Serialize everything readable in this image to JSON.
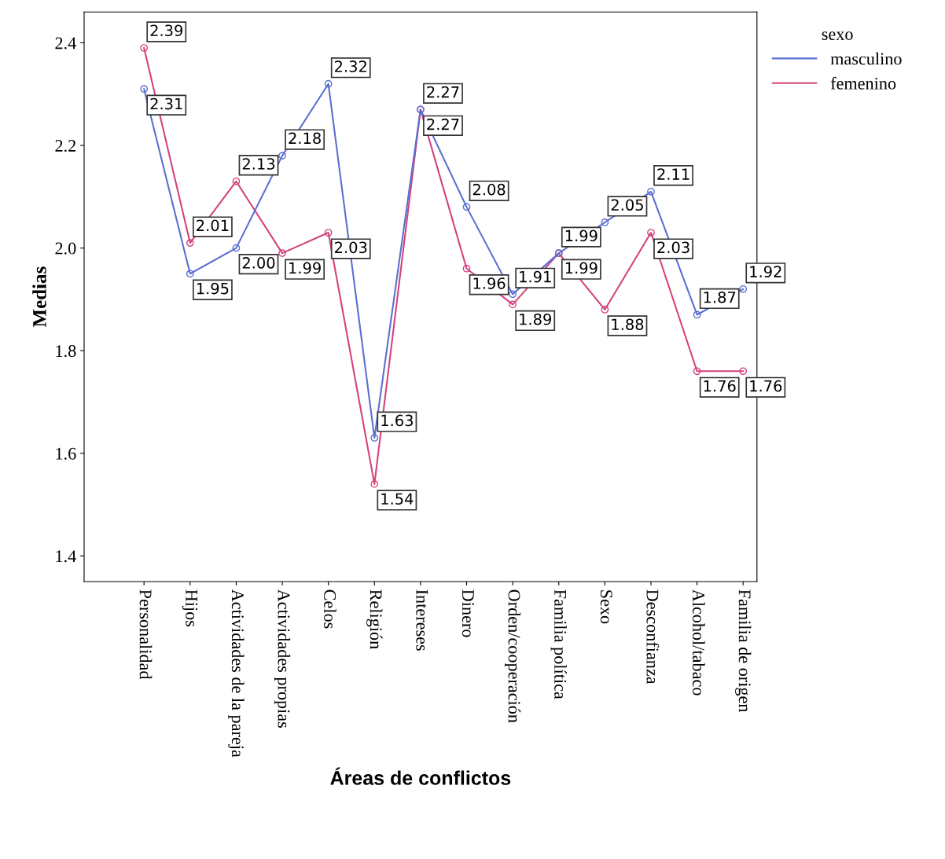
{
  "chart_data": {
    "type": "line",
    "xlabel": "Áreas de conflictos",
    "ylabel": "Medias",
    "legend_title": "sexo",
    "categories": [
      "Personalidad",
      "Hijos",
      "Actividades de la pareja",
      "Actividades propias",
      "Celos",
      "Religión",
      "Intereses",
      "Dinero",
      "Orden/cooperación",
      "Familia política",
      "Sexo",
      "Desconfianza",
      "Alcohol/tabaco",
      "Familia de origen"
    ],
    "series": [
      {
        "name": "masculino",
        "color": "#5b6fd1",
        "values": [
          2.31,
          1.95,
          2.0,
          2.18,
          2.32,
          1.63,
          2.27,
          2.08,
          1.91,
          1.99,
          2.05,
          2.11,
          1.87,
          1.92
        ],
        "value_labels": [
          "2.31",
          "1.95",
          "2.00",
          "2.18",
          "2.32",
          "1.63",
          "2.27",
          "2.08",
          "1.91",
          "1.99",
          "2.05",
          "2.11",
          "1.87",
          "1.92"
        ]
      },
      {
        "name": "femenino",
        "color": "#d4427d",
        "values": [
          2.39,
          2.01,
          2.13,
          1.99,
          2.03,
          1.54,
          2.27,
          1.96,
          1.89,
          1.99,
          1.88,
          2.03,
          1.76,
          1.76
        ],
        "value_labels": [
          "2.39",
          "2.01",
          "2.13",
          "1.99",
          "2.03",
          "1.54",
          "2.27",
          "1.96",
          "1.89",
          "1.99",
          "1.88",
          "2.03",
          "1.76",
          "1.76"
        ]
      }
    ],
    "ylim": [
      1.35,
      2.46
    ],
    "yticks": [
      {
        "value": 1.4,
        "label": "1.4"
      },
      {
        "value": 1.6,
        "label": "1.6"
      },
      {
        "value": 1.8,
        "label": "1.8"
      },
      {
        "value": 2.0,
        "label": "2.0"
      },
      {
        "value": 2.2,
        "label": "2.2"
      },
      {
        "value": 2.4,
        "label": "2.4"
      }
    ],
    "marker": "circle",
    "line_style": "solid",
    "grid": false,
    "legend": "top right"
  }
}
